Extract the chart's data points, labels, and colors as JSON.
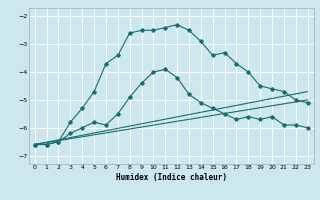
{
  "xlabel": "Humidex (Indice chaleur)",
  "ylabel": "",
  "bg_color": "#cce8ee",
  "grid_color": "#ffffff",
  "line_color": "#1a6b6b",
  "xlim": [
    -0.5,
    23.5
  ],
  "ylim": [
    -7.3,
    -1.7
  ],
  "yticks": [
    -7,
    -6,
    -5,
    -4,
    -3,
    -2
  ],
  "xticks": [
    0,
    1,
    2,
    3,
    4,
    5,
    6,
    7,
    8,
    9,
    10,
    11,
    12,
    13,
    14,
    15,
    16,
    17,
    18,
    19,
    20,
    21,
    22,
    23
  ],
  "line1_x": [
    0,
    1,
    2,
    3,
    4,
    5,
    6,
    7,
    8,
    9,
    10,
    11,
    12,
    13,
    14,
    15,
    16,
    17,
    18,
    19,
    20,
    21,
    22,
    23
  ],
  "line1_y": [
    -6.6,
    -6.6,
    -6.5,
    -6.2,
    -6.0,
    -5.8,
    -5.9,
    -5.5,
    -4.9,
    -4.4,
    -4.0,
    -3.9,
    -4.2,
    -4.8,
    -5.1,
    -5.3,
    -5.5,
    -5.7,
    -5.6,
    -5.7,
    -5.6,
    -5.9,
    -5.9,
    -6.0
  ],
  "line2_x": [
    0,
    1,
    2,
    3,
    4,
    5,
    6,
    7,
    8,
    9,
    10,
    11,
    12,
    13,
    14,
    15,
    16,
    17,
    18,
    19,
    20,
    21,
    22,
    23
  ],
  "line2_y": [
    -6.6,
    -6.6,
    -6.5,
    -5.8,
    -5.3,
    -4.7,
    -3.7,
    -3.4,
    -2.6,
    -2.5,
    -2.5,
    -2.4,
    -2.3,
    -2.5,
    -2.9,
    -3.4,
    -3.3,
    -3.7,
    -4.0,
    -4.5,
    -4.6,
    -4.7,
    -5.0,
    -5.1
  ],
  "line3_x": [
    0,
    23
  ],
  "line3_y": [
    -6.6,
    -5.0
  ],
  "line4_x": [
    0,
    23
  ],
  "line4_y": [
    -6.6,
    -4.7
  ]
}
